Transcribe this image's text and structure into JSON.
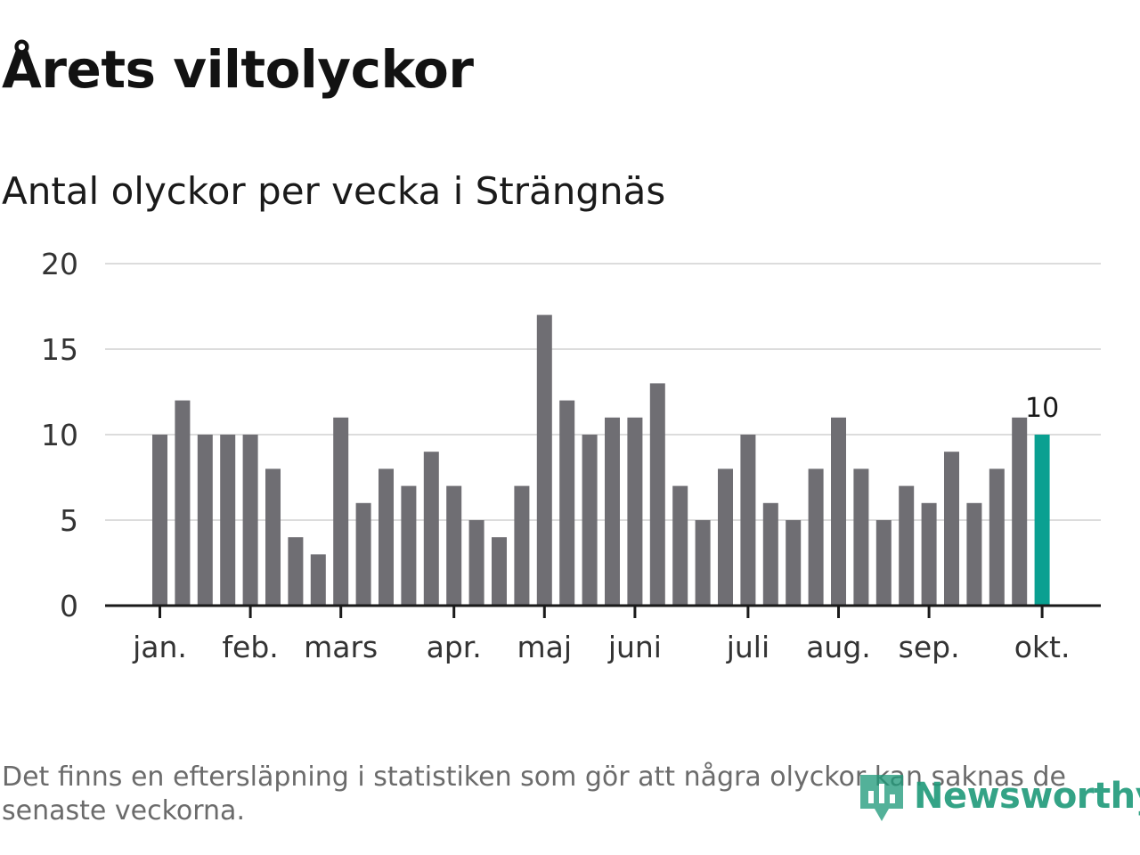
{
  "title": "Årets viltolyckor",
  "subtitle": "Antal olyckor per vecka i Strängnäs",
  "footnote": "Det finns en eftersläpning i statistiken som gör att några olyckor kan saknas de senaste veckorna.",
  "logo": {
    "text": "Newsworthy",
    "color": "#1f9a7a"
  },
  "colors": {
    "bar": "#6f6e73",
    "highlight": "#0aa091",
    "grid": "#dcdcdc",
    "axis": "#1a1a1a",
    "tick_text": "#333333"
  },
  "chart_data": {
    "type": "bar",
    "title": "Årets viltolyckor",
    "subtitle": "Antal olyckor per vecka i Strängnäs",
    "xlabel": "",
    "ylabel": "",
    "ylim": [
      0,
      20
    ],
    "yticks": [
      0,
      5,
      10,
      15,
      20
    ],
    "grid": true,
    "weeks": [
      1,
      2,
      3,
      4,
      5,
      6,
      7,
      8,
      9,
      10,
      11,
      12,
      13,
      14,
      15,
      16,
      17,
      18,
      19,
      20,
      21,
      22,
      23,
      24,
      25,
      26,
      27,
      28,
      29,
      30,
      31,
      32,
      33,
      34,
      35,
      36,
      37,
      38,
      39,
      40
    ],
    "values": [
      10,
      12,
      10,
      10,
      10,
      8,
      4,
      3,
      11,
      6,
      8,
      7,
      9,
      7,
      5,
      4,
      7,
      17,
      12,
      10,
      11,
      11,
      13,
      7,
      5,
      8,
      10,
      6,
      5,
      8,
      11,
      8,
      5,
      7,
      6,
      9,
      6,
      8,
      11,
      10
    ],
    "highlight_index": 39,
    "highlight_label": "10",
    "month_ticks": [
      {
        "label": "jan.",
        "week": 1
      },
      {
        "label": "feb.",
        "week": 5
      },
      {
        "label": "mars",
        "week": 9
      },
      {
        "label": "apr.",
        "week": 14
      },
      {
        "label": "maj",
        "week": 18
      },
      {
        "label": "juni",
        "week": 22
      },
      {
        "label": "juli",
        "week": 27
      },
      {
        "label": "aug.",
        "week": 31
      },
      {
        "label": "sep.",
        "week": 35
      },
      {
        "label": "okt.",
        "week": 40
      }
    ]
  }
}
